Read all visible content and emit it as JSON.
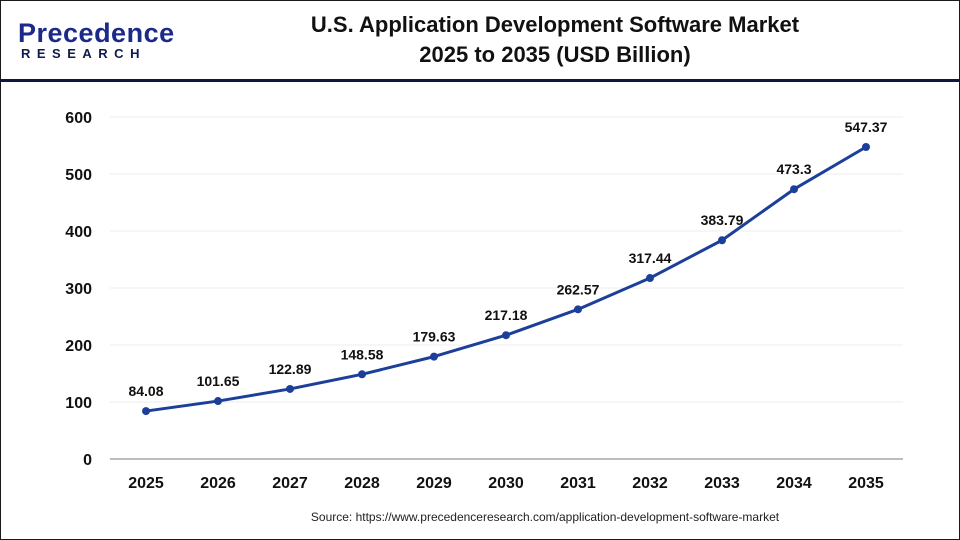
{
  "logo": {
    "text": "Precedence",
    "subtext": "RESEARCH"
  },
  "header": {
    "title_line1": "U.S. Application Development Software Market",
    "title_line2": "2025 to 2035  (USD Billion)"
  },
  "source": "Source: https://www.precedenceresearch.com/application-development-software-market",
  "colors": {
    "line": "#1c3f9a",
    "header_rule": "#0f1640",
    "grid": "#ececec"
  },
  "chart_data": {
    "type": "line",
    "title": "U.S. Application Development Software Market 2025 to 2035 (USD Billion)",
    "categories": [
      "2025",
      "2026",
      "2027",
      "2028",
      "2029",
      "2030",
      "2031",
      "2032",
      "2033",
      "2034",
      "2035"
    ],
    "values": [
      84.08,
      101.65,
      122.89,
      148.58,
      179.63,
      217.18,
      262.57,
      317.44,
      383.79,
      473.3,
      547.37
    ],
    "data_labels": [
      "84.08",
      "101.65",
      "122.89",
      "148.58",
      "179.63",
      "217.18",
      "262.57",
      "317.44",
      "383.79",
      "473.3",
      "547.37"
    ],
    "ylim": [
      0,
      600
    ],
    "yticks": [
      "0",
      "100",
      "200",
      "300",
      "400",
      "500",
      "600"
    ],
    "grid": true,
    "xlabel": "",
    "ylabel": ""
  }
}
